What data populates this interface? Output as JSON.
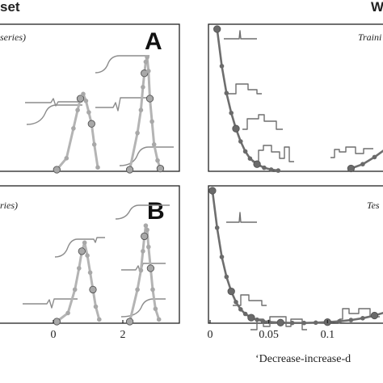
{
  "header": {
    "left": "set",
    "right": "W"
  },
  "panels": {
    "A": {
      "label": "A",
      "subtitle": "series)"
    },
    "B": {
      "label": "B",
      "subtitle": "ries)"
    },
    "train": {
      "subtitle": "Traini"
    },
    "test": {
      "subtitle": "Tes"
    }
  },
  "axes": {
    "left_x_ticks": [
      "0",
      "2"
    ],
    "right_x_ticks": [
      "0",
      "0.05",
      "0.1"
    ],
    "right_x_label": "‘Decrease-increase-d"
  },
  "colors": {
    "frame": "#222222",
    "light_curve": "#b4b4b4",
    "light_marker": "#a8a8a8",
    "dark_curve": "#6e6e6e",
    "dark_marker": "#6a6a6a",
    "inset": "#777777"
  },
  "chart_data": [
    {
      "type": "line",
      "panel": "A",
      "x": [
        0.1,
        0.38,
        0.58,
        0.7,
        0.78,
        0.86,
        0.94,
        1.02,
        1.1,
        1.18,
        1.28
      ],
      "series": [
        {
          "x": [
            0.1,
            0.38,
            0.58,
            0.7,
            0.78,
            0.86,
            0.94,
            1.02,
            1.1,
            1.18,
            1.28
          ],
          "values": [
            0.0,
            0.1,
            0.36,
            0.52,
            0.62,
            0.66,
            0.6,
            0.5,
            0.4,
            0.22,
            0.02
          ]
        },
        {
          "x": [
            2.2,
            2.42,
            2.52,
            2.58,
            2.62,
            2.66,
            2.7,
            2.74,
            2.78,
            2.84,
            2.9,
            3.0,
            3.08
          ],
          "values": [
            0.0,
            0.32,
            0.52,
            0.72,
            0.84,
            0.94,
            0.98,
            0.86,
            0.62,
            0.42,
            0.22,
            0.08,
            0.01
          ]
        }
      ],
      "xlim": [
        -0.7,
        3.6
      ]
    },
    {
      "type": "line",
      "panel": "B",
      "series": [
        {
          "x": [
            0.1,
            0.42,
            0.62,
            0.74,
            0.82,
            0.9,
            0.98,
            1.06,
            1.14,
            1.22,
            1.32
          ],
          "values": [
            0.0,
            0.08,
            0.3,
            0.5,
            0.66,
            0.74,
            0.62,
            0.46,
            0.3,
            0.14,
            0.02
          ]
        },
        {
          "x": [
            2.2,
            2.42,
            2.52,
            2.58,
            2.62,
            2.66,
            2.7,
            2.74,
            2.8,
            2.86,
            2.94,
            3.04
          ],
          "values": [
            0.0,
            0.3,
            0.48,
            0.66,
            0.8,
            0.9,
            0.86,
            0.7,
            0.5,
            0.3,
            0.12,
            0.02
          ]
        }
      ],
      "xlim": [
        -0.7,
        3.6
      ]
    },
    {
      "type": "line",
      "panel": "train",
      "series": [
        {
          "x": [
            0.006,
            0.01,
            0.014,
            0.018,
            0.022,
            0.026,
            0.03,
            0.034,
            0.04,
            0.046,
            0.052,
            0.058
          ],
          "values": [
            1.0,
            0.74,
            0.55,
            0.41,
            0.3,
            0.21,
            0.14,
            0.09,
            0.05,
            0.025,
            0.012,
            0.005
          ]
        },
        {
          "x": [
            0.12,
            0.13,
            0.14,
            0.15
          ],
          "values": [
            0.02,
            0.05,
            0.1,
            0.16
          ]
        }
      ],
      "xlim": [
        0,
        0.15
      ]
    },
    {
      "type": "line",
      "panel": "test",
      "series": [
        {
          "x": [
            0.002,
            0.006,
            0.01,
            0.014,
            0.018,
            0.022,
            0.026,
            0.03,
            0.035,
            0.04,
            0.045,
            0.05,
            0.06,
            0.07,
            0.08,
            0.09,
            0.1,
            0.11,
            0.12,
            0.13,
            0.14,
            0.15
          ],
          "values": [
            1.0,
            0.72,
            0.5,
            0.35,
            0.24,
            0.16,
            0.105,
            0.07,
            0.042,
            0.026,
            0.016,
            0.01,
            0.004,
            0.002,
            0.002,
            0.004,
            0.008,
            0.014,
            0.024,
            0.038,
            0.058,
            0.085
          ]
        }
      ],
      "xlim": [
        0,
        0.15
      ]
    }
  ]
}
